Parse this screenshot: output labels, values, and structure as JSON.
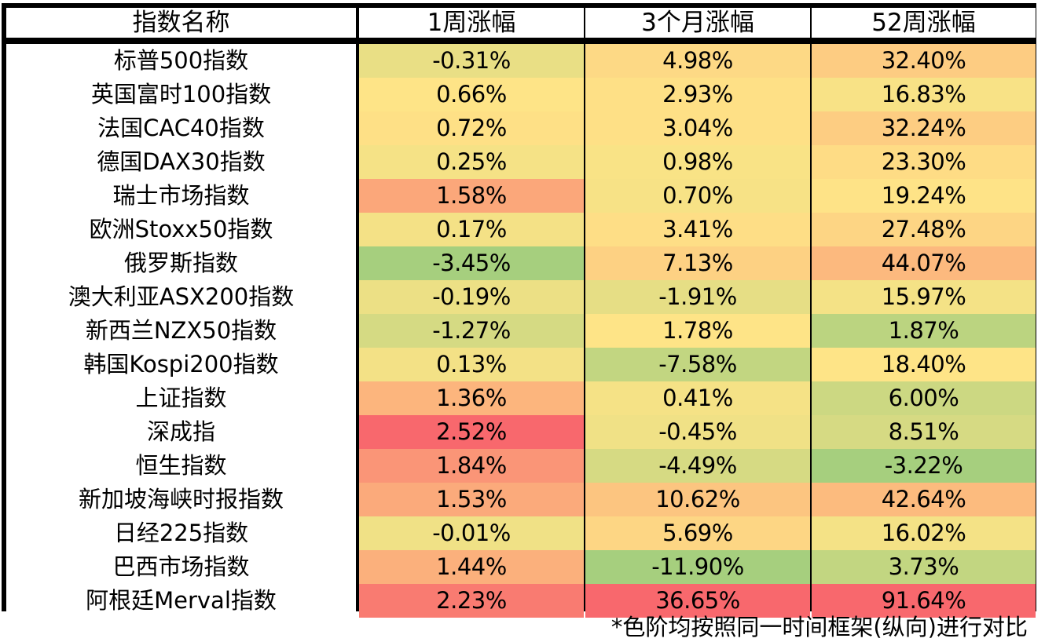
{
  "chart_data": {
    "type": "heatmap",
    "columns": [
      "指数名称",
      "1周涨幅",
      "3个月涨幅",
      "52周涨幅"
    ],
    "rows": [
      {
        "name": "标普500指数",
        "values": [
          -0.31,
          4.98,
          32.4
        ],
        "labels": [
          "-0.31%",
          "4.98%",
          "32.40%"
        ]
      },
      {
        "name": "英国富时100指数",
        "values": [
          0.66,
          2.93,
          16.83
        ],
        "labels": [
          "0.66%",
          "2.93%",
          "16.83%"
        ]
      },
      {
        "name": "法国CAC40指数",
        "values": [
          0.72,
          3.04,
          32.24
        ],
        "labels": [
          "0.72%",
          "3.04%",
          "32.24%"
        ]
      },
      {
        "name": "德国DAX30指数",
        "values": [
          0.25,
          0.98,
          23.3
        ],
        "labels": [
          "0.25%",
          "0.98%",
          "23.30%"
        ]
      },
      {
        "name": "瑞士市场指数",
        "values": [
          1.58,
          0.7,
          19.24
        ],
        "labels": [
          "1.58%",
          "0.70%",
          "19.24%"
        ]
      },
      {
        "name": "欧洲Stoxx50指数",
        "values": [
          0.17,
          3.41,
          27.48
        ],
        "labels": [
          "0.17%",
          "3.41%",
          "27.48%"
        ]
      },
      {
        "name": "俄罗斯指数",
        "values": [
          -3.45,
          7.13,
          44.07
        ],
        "labels": [
          "-3.45%",
          "7.13%",
          "44.07%"
        ]
      },
      {
        "name": "澳大利亚ASX200指数",
        "values": [
          -0.19,
          -1.91,
          15.97
        ],
        "labels": [
          "-0.19%",
          "-1.91%",
          "15.97%"
        ]
      },
      {
        "name": "新西兰NZX50指数",
        "values": [
          -1.27,
          1.78,
          1.87
        ],
        "labels": [
          "-1.27%",
          "1.78%",
          "1.87%"
        ]
      },
      {
        "name": "韩国Kospi200指数",
        "values": [
          0.13,
          -7.58,
          18.4
        ],
        "labels": [
          "0.13%",
          "-7.58%",
          "18.40%"
        ]
      },
      {
        "name": "上证指数",
        "values": [
          1.36,
          0.41,
          6.0
        ],
        "labels": [
          "1.36%",
          "0.41%",
          "6.00%"
        ]
      },
      {
        "name": "深成指",
        "values": [
          2.52,
          -0.45,
          8.51
        ],
        "labels": [
          "2.52%",
          "-0.45%",
          "8.51%"
        ]
      },
      {
        "name": "恒生指数",
        "values": [
          1.84,
          -4.49,
          -3.22
        ],
        "labels": [
          "1.84%",
          "-4.49%",
          "-3.22%"
        ]
      },
      {
        "name": "新加坡海峡时报指数",
        "values": [
          1.53,
          10.62,
          42.64
        ],
        "labels": [
          "1.53%",
          "10.62%",
          "42.64%"
        ]
      },
      {
        "name": "日经225指数",
        "values": [
          -0.01,
          5.69,
          16.02
        ],
        "labels": [
          "-0.01%",
          "5.69%",
          "16.02%"
        ]
      },
      {
        "name": "巴西市场指数",
        "values": [
          1.44,
          -11.9,
          3.73
        ],
        "labels": [
          "1.44%",
          "-11.90%",
          "3.73%"
        ]
      },
      {
        "name": "阿根廷Merval指数",
        "values": [
          2.23,
          36.65,
          91.64
        ],
        "labels": [
          "2.23%",
          "36.65%",
          "91.64%"
        ]
      }
    ],
    "color_scale": {
      "low": "#a6cf7e",
      "mid": "#fee487",
      "high": "#f8686d",
      "orientation": "per-column"
    },
    "footnote": "*色阶均按照同一时间框架(纵向)进行对比"
  }
}
